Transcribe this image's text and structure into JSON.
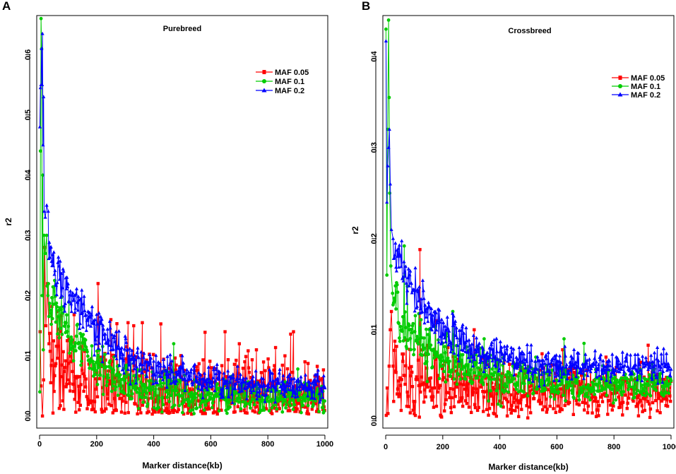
{
  "colors": {
    "maf005": "#ff0000",
    "maf01": "#00cc00",
    "maf02": "#0000ff"
  },
  "chart_data": [
    {
      "id": "A",
      "panel_label": "A",
      "type": "line",
      "title": "Purebreed",
      "xlabel": "Marker distance(kb)",
      "ylabel": "r2",
      "xlim": [
        -10,
        1010
      ],
      "ylim": [
        -0.02,
        0.665
      ],
      "xticks": [
        0,
        200,
        400,
        600,
        800,
        1000
      ],
      "yticks": [
        0.0,
        0.1,
        0.2,
        0.3,
        0.4,
        0.5,
        0.6
      ],
      "ytick_labels": [
        "0.0",
        "0.1",
        "0.2",
        "0.3",
        "0.4",
        "0.5",
        "0.6"
      ],
      "legend_position": "top-right",
      "series": [
        {
          "name": "MAF 0.05",
          "color_key": "maf005",
          "marker": "square",
          "trend": {
            "floor": 0.035,
            "amp": 0.09,
            "tau": 120,
            "noise": 0.045
          },
          "early": [
            [
              2,
              0.14
            ],
            [
              5,
              0.05
            ],
            [
              10,
              0.0
            ],
            [
              14,
              0.06
            ],
            [
              18,
              0.28
            ],
            [
              22,
              0.15
            ],
            [
              28,
              0.22
            ],
            [
              33,
              0.12
            ]
          ],
          "spikes": [
            [
              205,
              0.22
            ],
            [
              250,
              0.16
            ],
            [
              310,
              0.155
            ],
            [
              330,
              0.15
            ],
            [
              360,
              0.155
            ],
            [
              425,
              0.153
            ],
            [
              580,
              0.139
            ],
            [
              650,
              0.14
            ],
            [
              700,
              0.12
            ],
            [
              760,
              0.11
            ],
            [
              860,
              0.1
            ],
            [
              880,
              0.136
            ],
            [
              890,
              0.14
            ],
            [
              930,
              0.09
            ]
          ]
        },
        {
          "name": "MAF 0.1",
          "color_key": "maf01",
          "marker": "circle",
          "trend": {
            "floor": 0.03,
            "amp": 0.22,
            "tau": 150,
            "noise": 0.02
          },
          "early": [
            [
              1,
              0.04
            ],
            [
              3,
              0.44
            ],
            [
              5,
              0.66
            ],
            [
              7,
              0.61
            ],
            [
              9,
              0.2
            ],
            [
              11,
              0.4
            ],
            [
              13,
              0.11
            ],
            [
              16,
              0.3
            ],
            [
              20,
              0.27
            ],
            [
              25,
              0.3
            ]
          ],
          "spikes": [
            [
              470,
              0.12
            ],
            [
              905,
              0.078
            ]
          ]
        },
        {
          "name": "MAF 0.2",
          "color_key": "maf02",
          "marker": "triangle",
          "trend": {
            "floor": 0.048,
            "amp": 0.265,
            "tau": 190,
            "noise": 0.018
          },
          "early": [
            [
              1,
              0.48
            ],
            [
              3,
              0.545
            ],
            [
              5,
              0.55
            ],
            [
              7,
              0.61
            ],
            [
              9,
              0.55
            ],
            [
              10,
              0.635
            ],
            [
              12,
              0.45
            ],
            [
              14,
              0.53
            ],
            [
              16,
              0.34
            ],
            [
              20,
              0.33
            ],
            [
              25,
              0.35
            ],
            [
              30,
              0.34
            ]
          ],
          "spikes": []
        }
      ]
    },
    {
      "id": "B",
      "panel_label": "B",
      "type": "line",
      "title": "Crossbreed",
      "xlabel": "Marker distance(kb)",
      "ylabel": "r2",
      "xlim": [
        -10,
        1010
      ],
      "ylim": [
        -0.008,
        0.445
      ],
      "xticks": [
        0,
        200,
        400,
        600,
        800,
        1000
      ],
      "yticks": [
        0.0,
        0.1,
        0.2,
        0.3,
        0.4
      ],
      "ytick_labels": [
        "0.0",
        "0.1",
        "0.2",
        "0.3",
        "0.4"
      ],
      "legend_position": "top-right",
      "series": [
        {
          "name": "MAF 0.05",
          "color_key": "maf005",
          "marker": "square",
          "trend": {
            "floor": 0.03,
            "amp": 0.05,
            "tau": 80,
            "noise": 0.022
          },
          "early": [
            [
              2,
              0.006
            ],
            [
              5,
              0.036
            ],
            [
              8,
              0.008
            ],
            [
              12,
              0.06
            ],
            [
              16,
              0.1
            ],
            [
              20,
              0.12
            ],
            [
              26,
              0.06
            ]
          ],
          "spikes": [
            [
              120,
              0.188
            ],
            [
              175,
              0.11
            ],
            [
              310,
              0.1
            ],
            [
              620,
              0.078
            ],
            [
              920,
              0.083
            ]
          ]
        },
        {
          "name": "MAF 0.1",
          "color_key": "maf01",
          "marker": "circle",
          "trend": {
            "floor": 0.04,
            "amp": 0.11,
            "tau": 150,
            "noise": 0.014
          },
          "early": [
            [
              1,
              0.43
            ],
            [
              4,
              0.16
            ],
            [
              7,
              0.32
            ],
            [
              10,
              0.44
            ],
            [
              12,
              0.355
            ],
            [
              14,
              0.25
            ],
            [
              18,
              0.17
            ],
            [
              24,
              0.14
            ]
          ],
          "spikes": [
            [
              65,
              0.192
            ],
            [
              235,
              0.12
            ],
            [
              345,
              0.09
            ],
            [
              625,
              0.09
            ],
            [
              695,
              0.085
            ]
          ]
        },
        {
          "name": "MAF 0.2",
          "color_key": "maf02",
          "marker": "triangle",
          "trend": {
            "floor": 0.058,
            "amp": 0.16,
            "tau": 150,
            "noise": 0.012
          },
          "early": [
            [
              1,
              0.417
            ],
            [
              4,
              0.24
            ],
            [
              7,
              0.28
            ],
            [
              10,
              0.3
            ],
            [
              13,
              0.32
            ],
            [
              16,
              0.26
            ],
            [
              20,
              0.21
            ],
            [
              26,
              0.2
            ]
          ],
          "spikes": []
        }
      ]
    }
  ]
}
